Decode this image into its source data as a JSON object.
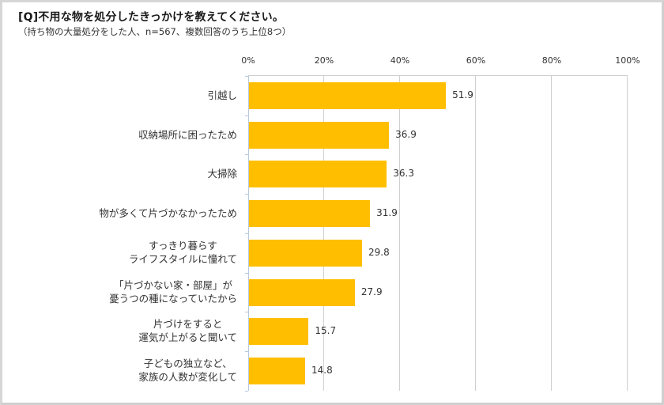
{
  "header": {
    "title": "[Q]不用な物を処分したきっかけを教えてください。",
    "subtitle": "（持ち物の大量処分をした人、n=567、複数回答のうち上位8つ）"
  },
  "chart_data": {
    "type": "bar",
    "orientation": "horizontal",
    "title": "[Q]不用な物を処分したきっかけを教えてください。",
    "subtitle": "（持ち物の大量処分をした人、n=567、複数回答のうち上位8つ）",
    "xlabel": "",
    "ylabel": "",
    "xlim": [
      0,
      100
    ],
    "x_ticks": [
      "0%",
      "20%",
      "40%",
      "60%",
      "80%",
      "100%"
    ],
    "grid": true,
    "legend": null,
    "bar_color": "#FFBF00",
    "categories": [
      [
        "引越し"
      ],
      [
        "収納場所に困ったため"
      ],
      [
        "大掃除"
      ],
      [
        "物が多くて片づかなかったため"
      ],
      [
        "すっきり暮らす",
        "ライフスタイルに憧れて"
      ],
      [
        "「片づかない家・部屋」が",
        "憂うつの種になっていたから"
      ],
      [
        "片づけをすると",
        "運気が上がると聞いて"
      ],
      [
        "子どもの独立など、",
        "家族の人数が変化して"
      ]
    ],
    "values": [
      51.9,
      36.9,
      36.3,
      31.9,
      29.8,
      27.9,
      15.7,
      14.8
    ],
    "value_labels": [
      "51.9",
      "36.9",
      "36.3",
      "31.9",
      "29.8",
      "27.9",
      "15.7",
      "14.8"
    ]
  }
}
